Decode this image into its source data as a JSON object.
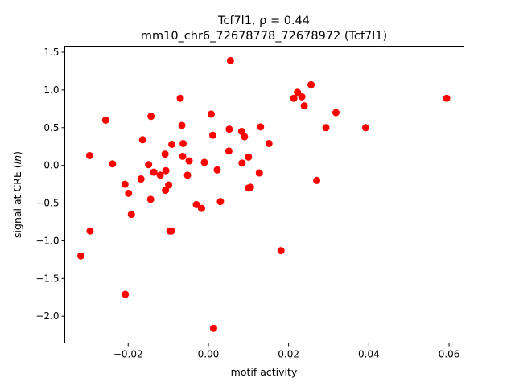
{
  "chart_data": {
    "type": "scatter",
    "title": [
      "Tcf7l1, ρ = 0.44",
      "mm10_chr6_72678778_72678972 (Tcf7l1)"
    ],
    "xlabel": "motif activity",
    "ylabel": "signal at CRE (ln)",
    "xlim": [
      -0.0358,
      0.0637
    ],
    "ylim": [
      -2.355,
      1.58
    ],
    "xticks": [
      -0.02,
      0.0,
      0.02,
      0.04,
      0.06
    ],
    "xtick_labels": [
      "−0.02",
      "0.00",
      "0.02",
      "0.04",
      "0.06"
    ],
    "yticks": [
      -2.0,
      -1.5,
      -1.0,
      -0.5,
      0.0,
      0.5,
      1.0,
      1.5
    ],
    "ytick_labels": [
      "−2.0",
      "−1.5",
      "−1.0",
      "−0.5",
      "0.0",
      "0.5",
      "1.0",
      "1.5"
    ],
    "grid": false,
    "marker_color": "#ff0000",
    "points": [
      {
        "x": -0.0318,
        "y": -1.2
      },
      {
        "x": -0.0296,
        "y": 0.13
      },
      {
        "x": -0.0295,
        "y": -0.87
      },
      {
        "x": -0.0256,
        "y": 0.6
      },
      {
        "x": -0.0239,
        "y": 0.02
      },
      {
        "x": -0.0208,
        "y": -0.25
      },
      {
        "x": -0.0207,
        "y": -1.71
      },
      {
        "x": -0.0199,
        "y": -0.37
      },
      {
        "x": -0.0192,
        "y": -0.65
      },
      {
        "x": -0.0168,
        "y": -0.18
      },
      {
        "x": -0.0164,
        "y": 0.34
      },
      {
        "x": -0.0149,
        "y": 0.01
      },
      {
        "x": -0.0144,
        "y": -0.45
      },
      {
        "x": -0.0143,
        "y": 0.65
      },
      {
        "x": -0.0136,
        "y": -0.09
      },
      {
        "x": -0.012,
        "y": -0.13
      },
      {
        "x": -0.0108,
        "y": 0.15
      },
      {
        "x": -0.0107,
        "y": -0.33
      },
      {
        "x": -0.0106,
        "y": -0.07
      },
      {
        "x": -0.0099,
        "y": -0.26
      },
      {
        "x": -0.0096,
        "y": -0.87
      },
      {
        "x": -0.0092,
        "y": -0.87
      },
      {
        "x": -0.0091,
        "y": 0.28
      },
      {
        "x": -0.007,
        "y": 0.89
      },
      {
        "x": -0.0066,
        "y": 0.53
      },
      {
        "x": -0.0064,
        "y": 0.12
      },
      {
        "x": -0.0063,
        "y": 0.29
      },
      {
        "x": -0.0052,
        "y": -0.13
      },
      {
        "x": -0.0048,
        "y": 0.06
      },
      {
        "x": -0.003,
        "y": -0.52
      },
      {
        "x": -0.0017,
        "y": -0.57
      },
      {
        "x": -0.001,
        "y": 0.04
      },
      {
        "x": 0.0007,
        "y": 0.68
      },
      {
        "x": 0.0011,
        "y": 0.4
      },
      {
        "x": 0.0013,
        "y": -2.16
      },
      {
        "x": 0.0022,
        "y": -0.06
      },
      {
        "x": 0.003,
        "y": -0.48
      },
      {
        "x": 0.0051,
        "y": 0.19
      },
      {
        "x": 0.0052,
        "y": 0.48
      },
      {
        "x": 0.0055,
        "y": 1.39
      },
      {
        "x": 0.0083,
        "y": 0.45
      },
      {
        "x": 0.0084,
        "y": 0.03
      },
      {
        "x": 0.009,
        "y": 0.38
      },
      {
        "x": 0.01,
        "y": 0.11
      },
      {
        "x": 0.01,
        "y": -0.3
      },
      {
        "x": 0.0105,
        "y": -0.29
      },
      {
        "x": 0.0127,
        "y": -0.1
      },
      {
        "x": 0.013,
        "y": 0.51
      },
      {
        "x": 0.0151,
        "y": 0.29
      },
      {
        "x": 0.0181,
        "y": -1.13
      },
      {
        "x": 0.0213,
        "y": 0.89
      },
      {
        "x": 0.0222,
        "y": 0.97
      },
      {
        "x": 0.0233,
        "y": 0.91
      },
      {
        "x": 0.0239,
        "y": 0.79
      },
      {
        "x": 0.0256,
        "y": 1.07
      },
      {
        "x": 0.027,
        "y": -0.2
      },
      {
        "x": 0.0293,
        "y": 0.5
      },
      {
        "x": 0.0318,
        "y": 0.7
      },
      {
        "x": 0.0392,
        "y": 0.5
      },
      {
        "x": 0.0594,
        "y": 0.89
      }
    ]
  }
}
